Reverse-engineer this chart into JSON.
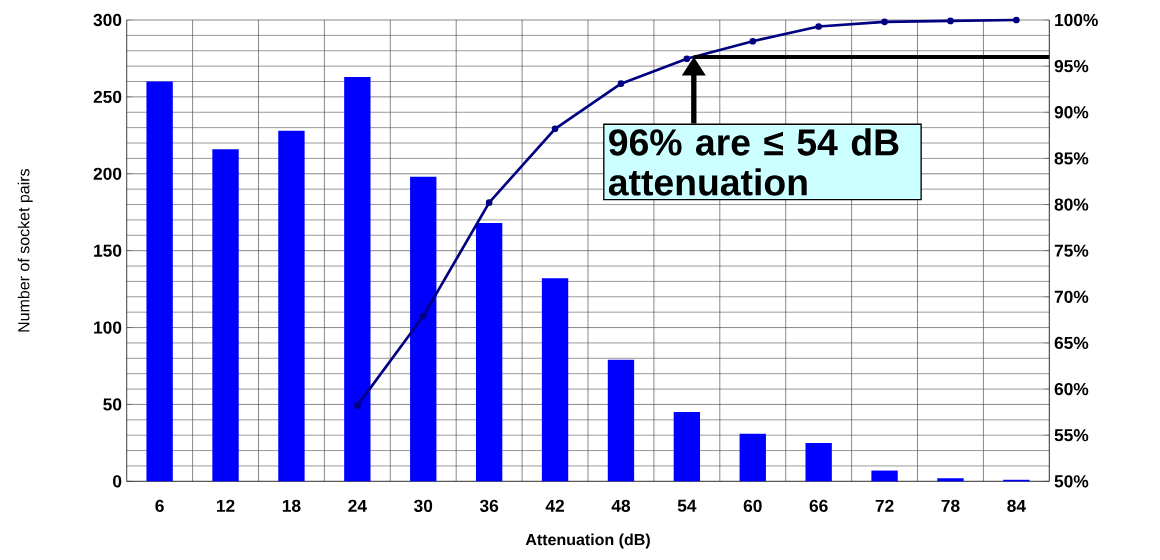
{
  "chart_data": {
    "type": "bar",
    "xlabel": "Attenuation (dB)",
    "ylabel": "Number of socket pairs",
    "categories": [
      "6",
      "12",
      "18",
      "24",
      "30",
      "36",
      "42",
      "48",
      "54",
      "60",
      "66",
      "72",
      "78",
      "84"
    ],
    "series": [
      {
        "color": "#0000ff",
        "values": [
          260,
          216,
          228,
          263,
          198,
          168,
          132,
          79,
          45,
          31,
          25,
          7,
          2,
          1
        ]
      },
      {
        "type": "line",
        "axis": "y2",
        "color": "#000080",
        "marker": "circle",
        "values": [
          null,
          null,
          null,
          58.2,
          67.9,
          80.2,
          88.2,
          93.1,
          95.8,
          97.7,
          99.3,
          99.8,
          99.9,
          100
        ]
      }
    ],
    "ylim": [
      0,
      300
    ],
    "yticks": [
      0,
      50,
      100,
      150,
      200,
      250,
      300
    ],
    "y2lim": [
      50,
      100
    ],
    "y2ticks": [
      {
        "value": 50,
        "label": "50%"
      },
      {
        "value": 55,
        "label": "55%"
      },
      {
        "value": 60,
        "label": "60%"
      },
      {
        "value": 65,
        "label": "65%"
      },
      {
        "value": 70,
        "label": "70%"
      },
      {
        "value": 75,
        "label": "75%"
      },
      {
        "value": 80,
        "label": "80%"
      },
      {
        "value": 85,
        "label": "85%"
      },
      {
        "value": 90,
        "label": "90%"
      },
      {
        "value": 95,
        "label": "95%"
      },
      {
        "value": 100,
        "label": "100%"
      }
    ],
    "ref_lines": [
      {
        "axis": "y2",
        "value": 96,
        "color": "#000000"
      }
    ],
    "annotations": [
      "96% are ≤ 54 dB attenuation"
    ],
    "grid": true
  }
}
